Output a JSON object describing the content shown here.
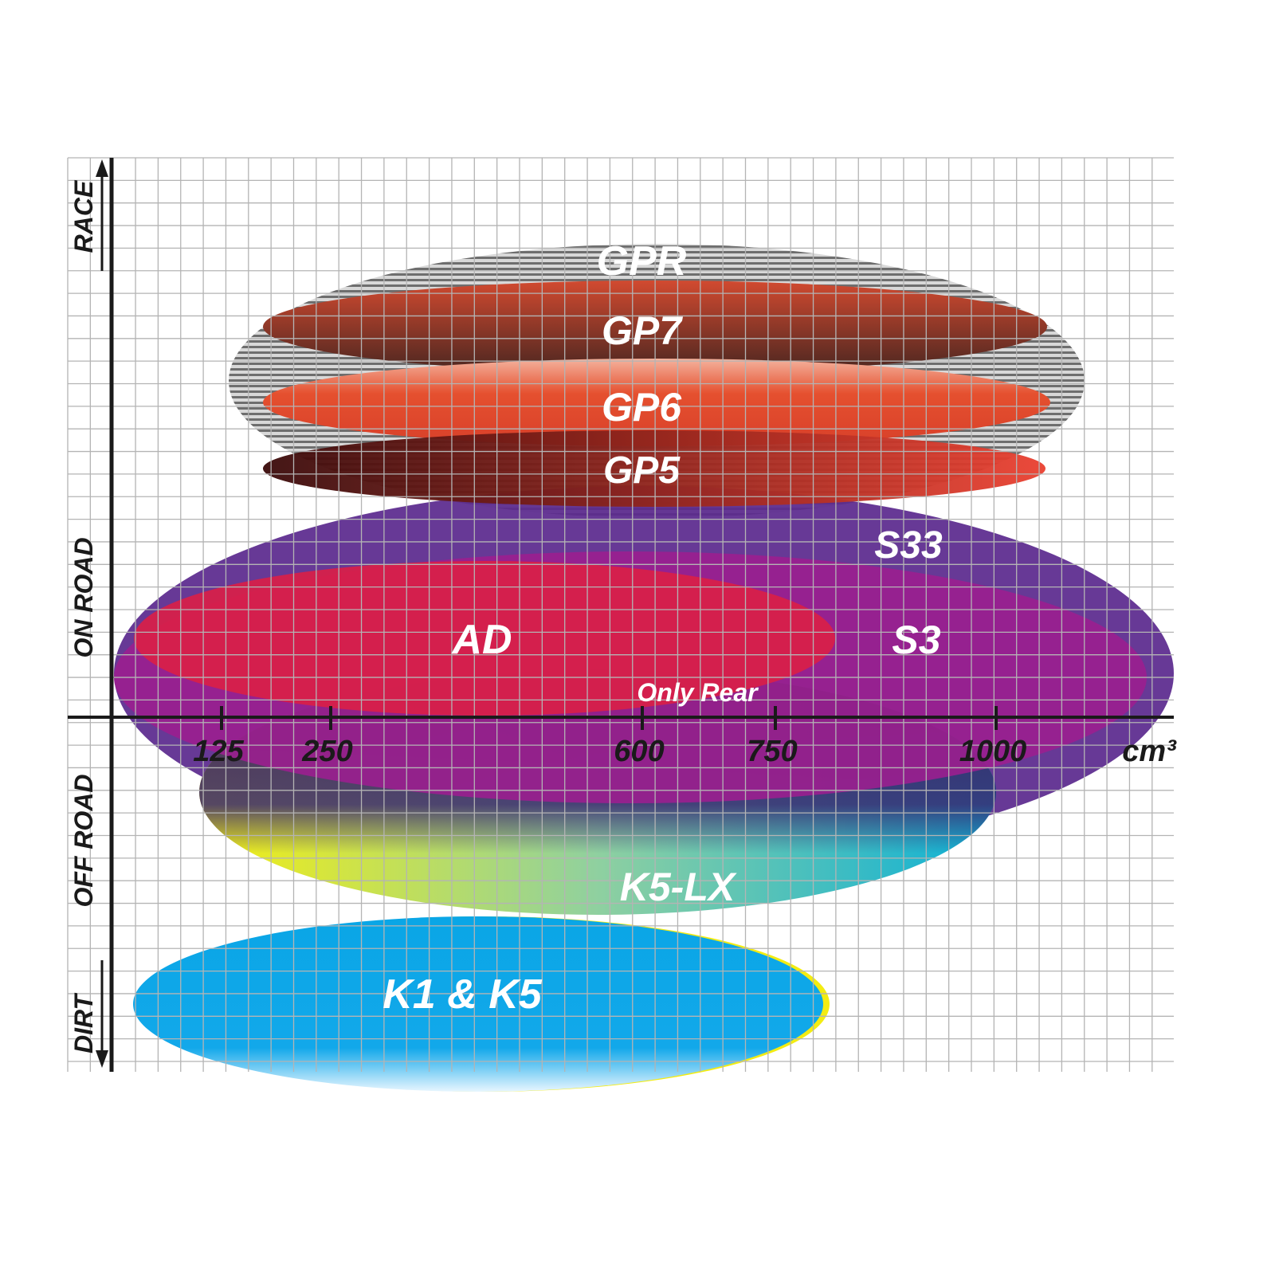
{
  "chart_data": {
    "type": "ellipse-positioning",
    "x_axis": {
      "unit": "cm³",
      "ticks": [
        "125",
        "250",
        "600",
        "750",
        "1000"
      ]
    },
    "y_axis": {
      "categories": [
        "RACE",
        "ON ROAD",
        "OFF ROAD",
        "DIRT"
      ]
    },
    "grid": true,
    "series": [
      {
        "name": "GPR",
        "color": "#9a9a9a",
        "pattern": "horizontal-stripes"
      },
      {
        "name": "GP7",
        "color": "#8b3a2a"
      },
      {
        "name": "GP6",
        "color": "#e0452e"
      },
      {
        "name": "GP5",
        "color": "#b0201a"
      },
      {
        "name": "S33",
        "color": "#5b2a8e"
      },
      {
        "name": "S3",
        "color": "#9b1f8f"
      },
      {
        "name": "AD",
        "color": "#d91f48"
      },
      {
        "name": "K5-LX",
        "color": "#f0e81a",
        "note": "Only Rear"
      },
      {
        "name": "K1 & K5",
        "color": "#0aa6e6"
      }
    ]
  }
}
